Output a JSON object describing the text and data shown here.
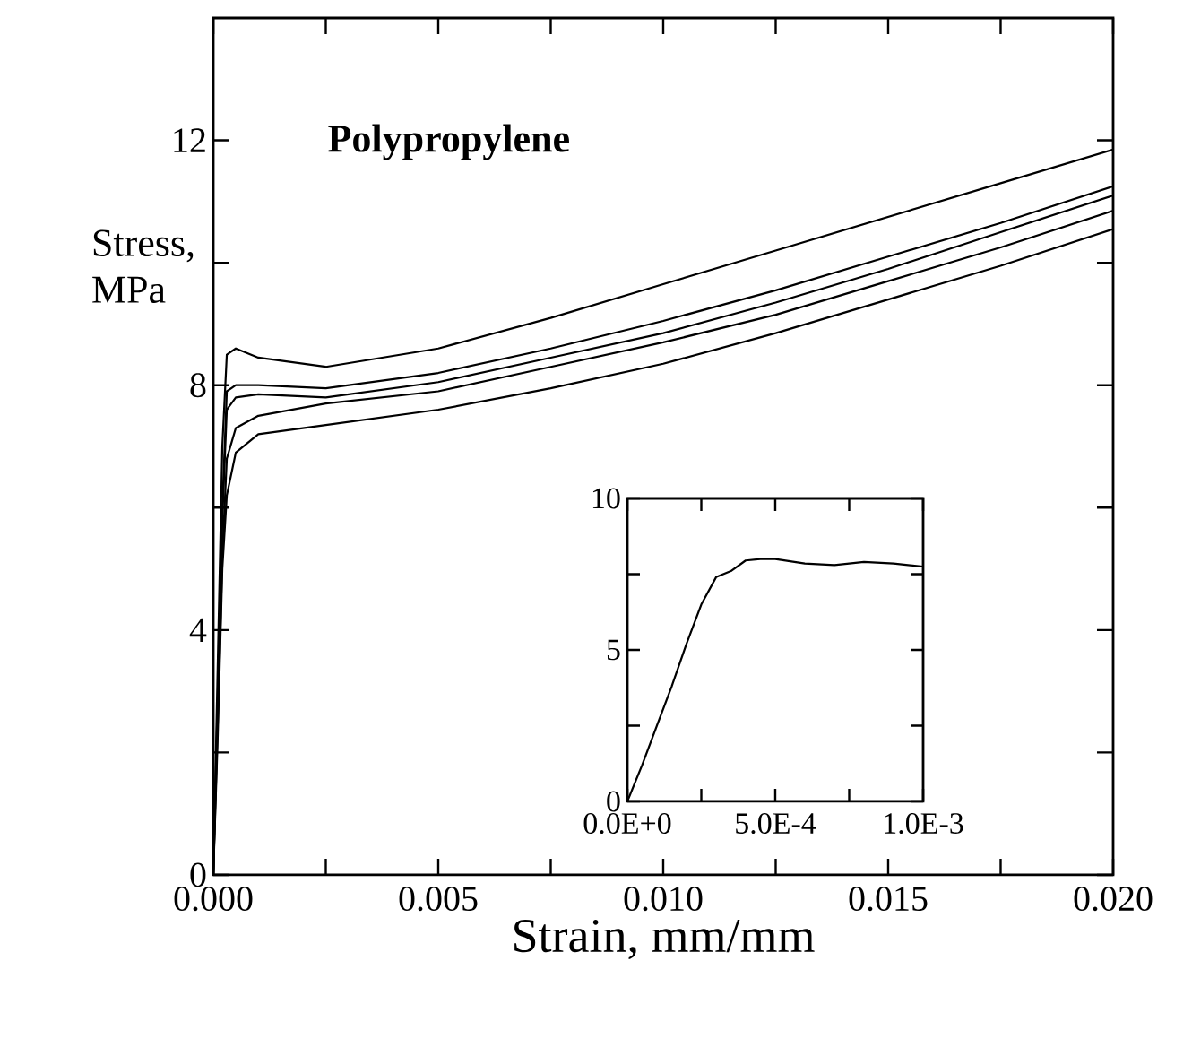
{
  "chart_data": [
    {
      "type": "line",
      "title": "Polypropylene",
      "xlabel": "Strain, mm/mm",
      "ylabel": "Stress, MPa",
      "xlim": [
        0,
        0.02
      ],
      "ylim": [
        0,
        14
      ],
      "xticks": [
        {
          "value": 0,
          "label": "0.000"
        },
        {
          "value": 0.0025,
          "label": null
        },
        {
          "value": 0.005,
          "label": "0.005"
        },
        {
          "value": 0.0075,
          "label": null
        },
        {
          "value": 0.01,
          "label": "0.010"
        },
        {
          "value": 0.0125,
          "label": null
        },
        {
          "value": 0.015,
          "label": "0.015"
        },
        {
          "value": 0.0175,
          "label": null
        },
        {
          "value": 0.02,
          "label": "0.020"
        }
      ],
      "yticks": [
        0,
        {
          "value": 2,
          "label": null
        },
        4,
        {
          "value": 6,
          "label": null
        },
        8,
        {
          "value": 10,
          "label": null
        },
        12
      ],
      "x": [
        0,
        0.0001,
        0.0002,
        0.0003,
        0.0005,
        0.001,
        0.0025,
        0.005,
        0.0075,
        0.01,
        0.0125,
        0.015,
        0.0175,
        0.02
      ],
      "series": [
        {
          "color": "#000000",
          "values": [
            0,
            3.5,
            7.0,
            8.5,
            8.6,
            8.45,
            8.3,
            8.6,
            9.1,
            9.65,
            10.2,
            10.75,
            11.3,
            11.85
          ]
        },
        {
          "color": "#000000",
          "values": [
            0,
            3.0,
            6.0,
            7.9,
            8.0,
            8.0,
            7.95,
            8.2,
            8.6,
            9.05,
            9.55,
            10.1,
            10.65,
            11.25
          ]
        },
        {
          "color": "#000000",
          "values": [
            0,
            2.8,
            5.8,
            7.6,
            7.8,
            7.85,
            7.8,
            8.05,
            8.45,
            8.85,
            9.35,
            9.9,
            10.5,
            11.1
          ]
        },
        {
          "color": "#000000",
          "values": [
            0,
            2.5,
            5.2,
            6.8,
            7.3,
            7.5,
            7.7,
            7.9,
            8.3,
            8.7,
            9.15,
            9.7,
            10.25,
            10.85
          ]
        },
        {
          "color": "#000000",
          "values": [
            0,
            2.3,
            5.0,
            6.2,
            6.9,
            7.2,
            7.35,
            7.6,
            7.95,
            8.35,
            8.85,
            9.4,
            9.95,
            10.55
          ]
        }
      ]
    },
    {
      "type": "line",
      "xlim": [
        0,
        0.001
      ],
      "ylim": [
        0,
        10
      ],
      "xticks": [
        {
          "value": 0,
          "label": "0.0E+0"
        },
        {
          "value": 0.00025,
          "label": null
        },
        {
          "value": 0.0005,
          "label": "5.0E-4"
        },
        {
          "value": 0.00075,
          "label": null
        },
        {
          "value": 0.001,
          "label": "1.0E-3"
        }
      ],
      "yticks": [
        0,
        {
          "value": 2.5,
          "label": null
        },
        5,
        {
          "value": 7.5,
          "label": null
        },
        10
      ],
      "x": [
        0,
        5e-05,
        0.0001,
        0.00015,
        0.0002,
        0.00025,
        0.0003,
        0.00035,
        0.0004,
        0.00045,
        0.0005,
        0.0006,
        0.0007,
        0.0008,
        0.0009,
        0.001
      ],
      "series": [
        {
          "color": "#000000",
          "values": [
            0,
            1.2,
            2.5,
            3.8,
            5.2,
            6.5,
            7.4,
            7.6,
            7.95,
            8.0,
            8.0,
            7.85,
            7.8,
            7.9,
            7.85,
            7.75
          ]
        }
      ]
    }
  ]
}
